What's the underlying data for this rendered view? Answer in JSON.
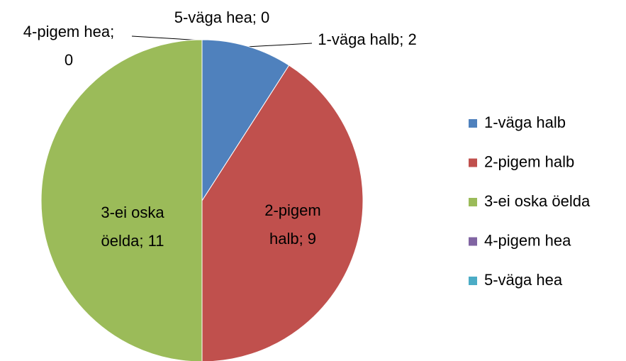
{
  "chart_data": {
    "type": "pie",
    "categories": [
      "1-väga halb",
      "2-pigem halb",
      "3-ei oska öelda",
      "4-pigem hea",
      "5-väga hea"
    ],
    "values": [
      2,
      9,
      11,
      0,
      0
    ],
    "value_labels": [
      "1-väga halb; 2",
      "2-pigem halb; 9",
      "3-ei oska öelda; 11",
      "4-pigem hea; 0",
      "5-väga hea; 0"
    ],
    "colors": [
      "#4f81bd",
      "#c0504d",
      "#9bbb59",
      "#8064a2",
      "#4bacc6"
    ],
    "legend": "right"
  }
}
